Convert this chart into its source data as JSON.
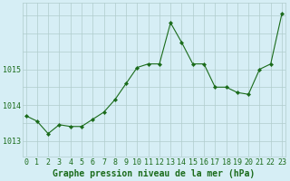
{
  "x": [
    0,
    1,
    2,
    3,
    4,
    5,
    6,
    7,
    8,
    9,
    10,
    11,
    12,
    13,
    14,
    15,
    16,
    17,
    18,
    19,
    20,
    21,
    22,
    23
  ],
  "y": [
    1013.7,
    1013.55,
    1013.2,
    1013.45,
    1013.4,
    1013.4,
    1013.6,
    1013.8,
    1014.15,
    1014.6,
    1015.05,
    1015.15,
    1015.15,
    1016.3,
    1015.75,
    1015.15,
    1015.15,
    1014.5,
    1014.5,
    1014.35,
    1014.3,
    1015.0,
    1015.15,
    1016.55
  ],
  "line_color": "#1a6b1a",
  "marker": "D",
  "marker_size": 2.2,
  "bg_color": "#d6eef5",
  "grid_color": "#b0cccc",
  "ylabel_ticks": [
    1013,
    1014,
    1015
  ],
  "ylim": [
    1012.55,
    1016.85
  ],
  "xlim": [
    -0.3,
    23.3
  ],
  "xlabel": "Graphe pression niveau de la mer (hPa)",
  "xlabel_color": "#1a6b1a",
  "tick_label_color": "#1a6b1a",
  "axis_fontsize": 7,
  "tick_fontsize": 6
}
